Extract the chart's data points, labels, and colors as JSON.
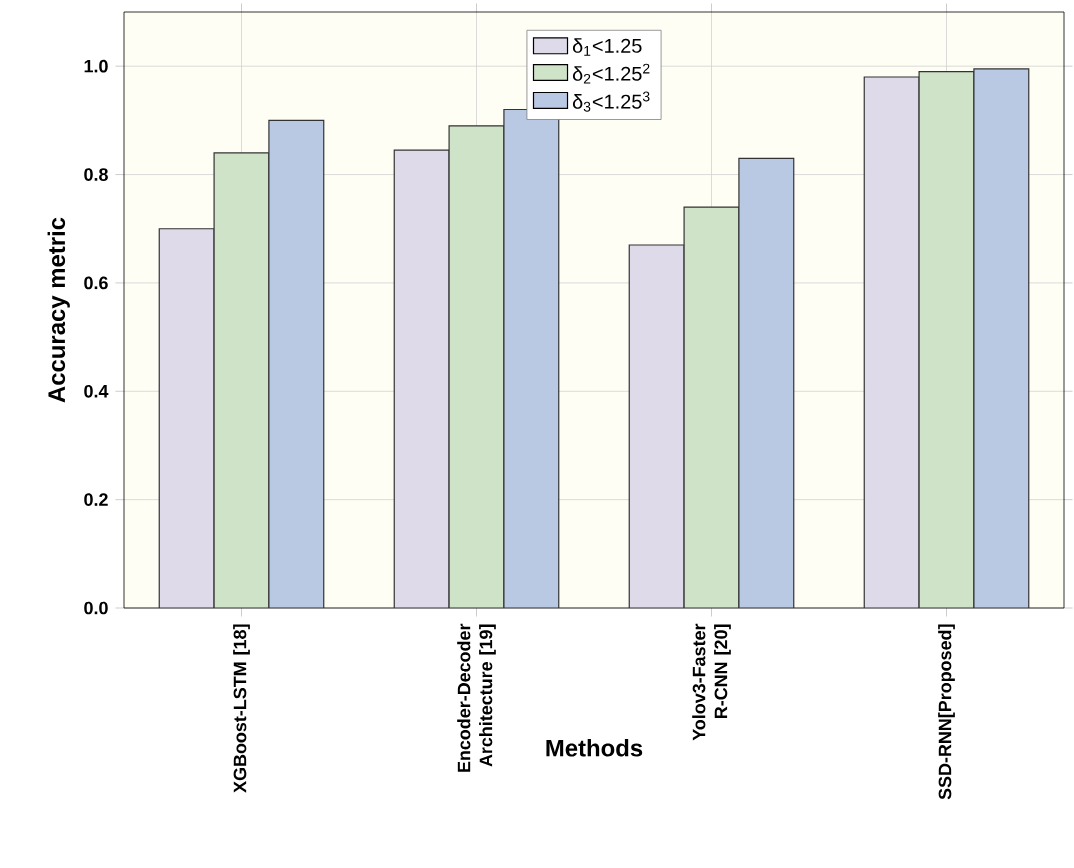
{
  "chart_data": {
    "type": "bar",
    "xlabel": "Methods",
    "ylabel": "Accuracy metric",
    "categories": [
      "XGBoost-LSTM [18]",
      "Encoder-Decoder Architecture [19]",
      "Yolov3-Faster R-CNN [20]",
      "SSD-RNN[Proposed]"
    ],
    "series": [
      {
        "name": "δ$_{1}$<1.25",
        "color": "#dedaea",
        "values": [
          0.7,
          0.845,
          0.67,
          0.98
        ]
      },
      {
        "name": "δ$_{2}$<1.25$^{2}$",
        "color": "#cfe3c9",
        "values": [
          0.84,
          0.89,
          0.74,
          0.99
        ]
      },
      {
        "name": "δ$_{3}$<1.25$^{3}$",
        "color": "#b9c9e3",
        "values": [
          0.9,
          0.92,
          0.83,
          0.995
        ]
      }
    ],
    "ylim": [
      0,
      1.1
    ],
    "yticks": [
      {
        "value": 0,
        "label": "0.0"
      },
      0.2,
      0.4,
      0.6,
      0.8,
      {
        "value": 1,
        "label": "1.0"
      }
    ],
    "grid": true,
    "legend": "top"
  }
}
